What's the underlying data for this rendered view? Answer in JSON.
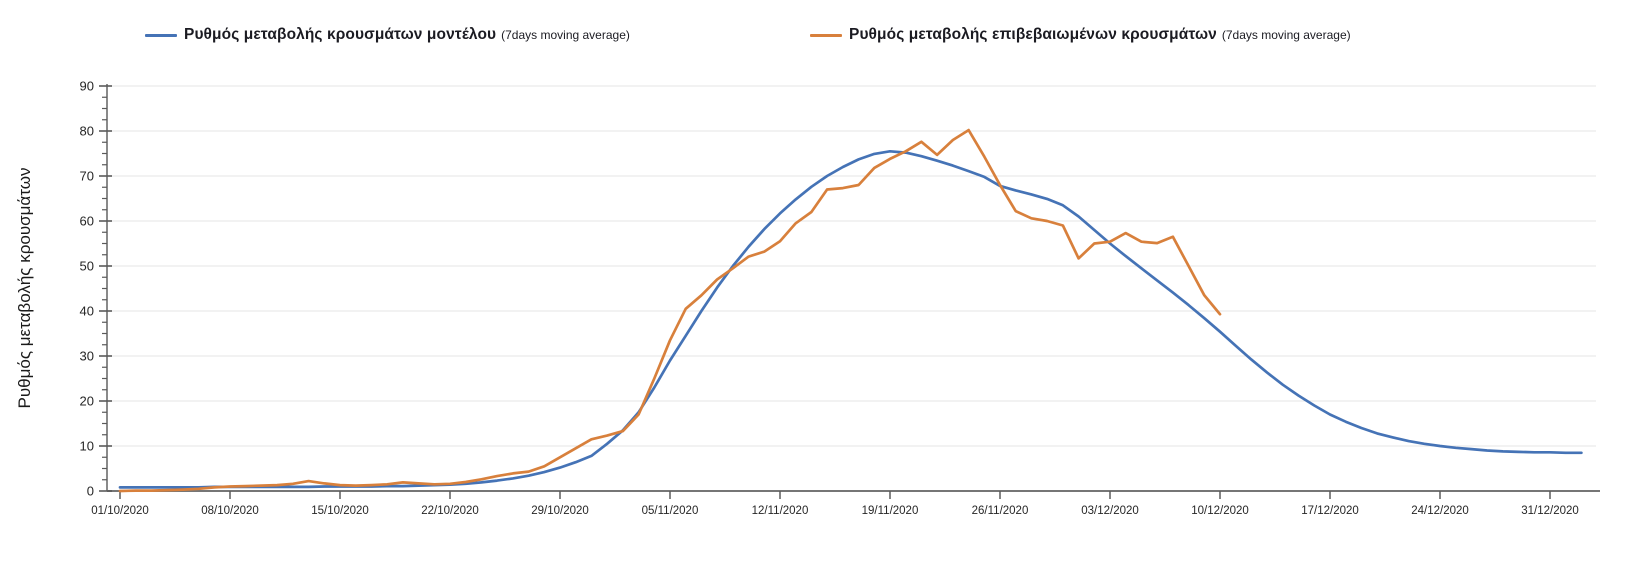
{
  "legend": [
    {
      "label": "Ρυθμός μεταβολής κρουσμάτων μοντέλου",
      "suffix": "(7days moving average)",
      "color": "#4573b6"
    },
    {
      "label": "Ρυθμός μεταβολής επιβεβαιωμένων κρουσμάτων",
      "suffix": "(7days moving average)",
      "color": "#d8803c"
    }
  ],
  "colors": {
    "model_line": "#4573b6",
    "confirmed_line": "#d8803c",
    "gridline": "#e4e4e4",
    "axis": "#767676",
    "tick": "#5a5a5a",
    "tick_text": "#262626",
    "background": "#ffffff"
  },
  "chart_data": {
    "type": "line",
    "title": "",
    "xlabel": "",
    "ylabel": "Ρυθμός μεταβολής κρουσμάτων",
    "ylim": [
      0,
      90
    ],
    "y_ticks": [
      0,
      10,
      20,
      30,
      40,
      50,
      60,
      70,
      80,
      90
    ],
    "y_minor_tick_step": 2.5,
    "grid": "horizontal",
    "legend_position": "top",
    "x_unit": "days since 01/10/2020",
    "x_axis_days": [
      0,
      93
    ],
    "x_ticks": [
      {
        "day": 0,
        "label": "01/10/2020"
      },
      {
        "day": 7,
        "label": "08/10/2020"
      },
      {
        "day": 14,
        "label": "15/10/2020"
      },
      {
        "day": 21,
        "label": "22/10/2020"
      },
      {
        "day": 28,
        "label": "29/10/2020"
      },
      {
        "day": 35,
        "label": "05/11/2020"
      },
      {
        "day": 42,
        "label": "12/11/2020"
      },
      {
        "day": 49,
        "label": "19/11/2020"
      },
      {
        "day": 56,
        "label": "26/11/2020"
      },
      {
        "day": 63,
        "label": "03/12/2020"
      },
      {
        "day": 70,
        "label": "10/12/2020"
      },
      {
        "day": 77,
        "label": "17/12/2020"
      },
      {
        "day": 84,
        "label": "24/12/2020"
      },
      {
        "day": 91,
        "label": "31/12/2020"
      }
    ],
    "series": [
      {
        "name": "Ρυθμός μεταβολής κρουσμάτων μοντέλου (7days moving average)",
        "color": "#4573b6",
        "start_day": 0,
        "values": [
          0.8,
          0.8,
          0.8,
          0.8,
          0.8,
          0.8,
          0.9,
          0.9,
          0.9,
          0.9,
          0.9,
          0.9,
          0.9,
          1.0,
          1.0,
          1.0,
          1.0,
          1.1,
          1.1,
          1.2,
          1.3,
          1.4,
          1.6,
          1.9,
          2.3,
          2.8,
          3.4,
          4.2,
          5.2,
          6.4,
          7.8,
          10.5,
          13.5,
          17.5,
          23.0,
          29.0,
          34.5,
          40.0,
          45.2,
          50.0,
          54.3,
          58.2,
          61.7,
          64.8,
          67.6,
          70.0,
          72.0,
          73.7,
          74.9,
          75.5,
          75.2,
          74.4,
          73.4,
          72.3,
          71.1,
          69.8,
          67.8,
          66.8,
          65.9,
          64.9,
          63.5,
          61.0,
          58.0,
          55.0,
          52.2,
          49.5,
          46.8,
          44.1,
          41.3,
          38.4,
          35.4,
          32.3,
          29.2,
          26.3,
          23.6,
          21.2,
          19.0,
          17.0,
          15.4,
          14.0,
          12.8,
          11.9,
          11.1,
          10.5,
          10.0,
          9.6,
          9.3,
          9.0,
          8.8,
          8.7,
          8.6,
          8.6,
          8.5,
          8.5
        ]
      },
      {
        "name": "Ρυθμός μεταβολής επιβεβαιωμένων κρουσμάτων (7days moving average)",
        "color": "#d8803c",
        "start_day": 0,
        "values": [
          0.0,
          0.1,
          0.1,
          0.2,
          0.3,
          0.5,
          0.8,
          1.0,
          1.1,
          1.2,
          1.3,
          1.6,
          2.2,
          1.7,
          1.3,
          1.2,
          1.3,
          1.5,
          1.9,
          1.7,
          1.5,
          1.6,
          2.0,
          2.6,
          3.3,
          3.9,
          4.3,
          5.5,
          7.5,
          9.5,
          11.5,
          12.3,
          13.3,
          17.0,
          25.0,
          33.5,
          40.5,
          43.5,
          47.0,
          49.5,
          52.1,
          53.2,
          55.5,
          59.5,
          62.0,
          67.0,
          67.3,
          68.0,
          71.8,
          73.8,
          75.5,
          77.6,
          74.7,
          78.0,
          80.2,
          74.3,
          68.0,
          62.2,
          60.6,
          60.0,
          59.0,
          51.7,
          55.0,
          55.4,
          57.3,
          55.4,
          55.1,
          56.5,
          50.0,
          43.5,
          39.3
        ]
      }
    ]
  }
}
